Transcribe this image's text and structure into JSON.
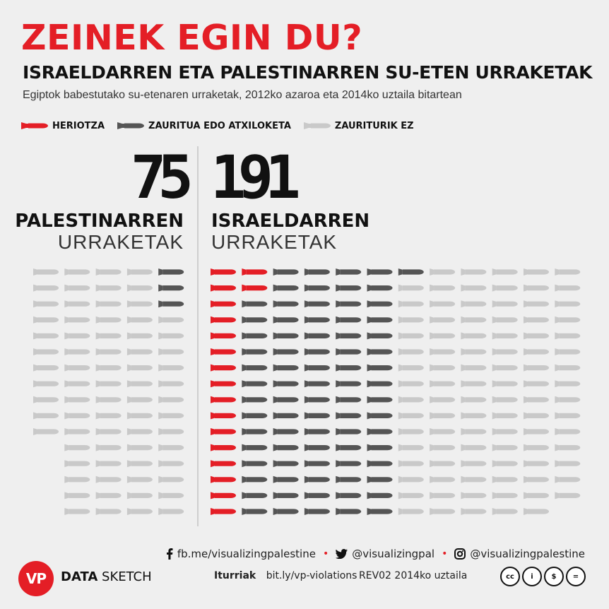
{
  "header": {
    "title": "ZEINEK EGIN DU?",
    "subtitle": "ISRAELDARREN ETA PALESTINARREN SU-ETEN URRAKETAK",
    "description": "Egiptok babestutako su-etenaren urraketak, 2012ko azaroa eta 2014ko uztaila bitartean"
  },
  "legend": [
    {
      "label": "HERIOTZA",
      "color": "#e41e26",
      "icon": "missile-icon"
    },
    {
      "label": "ZAURITUA EDO ATXILOKETA",
      "color": "#555555",
      "icon": "missile-icon"
    },
    {
      "label": "ZAURITURIK EZ",
      "color": "#c9c9c9",
      "icon": "missile-icon"
    }
  ],
  "colors": {
    "death": "#e41e26",
    "injury": "#555555",
    "none": "#c9c9c9",
    "accent": "#e41e26"
  },
  "palestinian": {
    "count": "75",
    "name": "PALESTINARREN",
    "sub": "URRAKETAK",
    "columns": [
      {
        "total": 11,
        "death": 0,
        "injury": 0
      },
      {
        "total": 16,
        "death": 0,
        "injury": 0
      },
      {
        "total": 16,
        "death": 0,
        "injury": 0
      },
      {
        "total": 16,
        "death": 0,
        "injury": 0
      },
      {
        "total": 16,
        "death": 0,
        "injury": 3
      }
    ]
  },
  "israeli": {
    "count": "191",
    "name": "ISRAELDARREN",
    "sub": "URRAKETAK",
    "columns": [
      {
        "total": 16,
        "death": 16,
        "injury": 0
      },
      {
        "total": 16,
        "death": 2,
        "injury": 14
      },
      {
        "total": 16,
        "death": 0,
        "injury": 16
      },
      {
        "total": 16,
        "death": 0,
        "injury": 16
      },
      {
        "total": 16,
        "death": 0,
        "injury": 16
      },
      {
        "total": 16,
        "death": 0,
        "injury": 16
      },
      {
        "total": 16,
        "death": 0,
        "injury": 1
      },
      {
        "total": 16,
        "death": 0,
        "injury": 0
      },
      {
        "total": 16,
        "death": 0,
        "injury": 0
      },
      {
        "total": 16,
        "death": 0,
        "injury": 0
      },
      {
        "total": 16,
        "death": 0,
        "injury": 0
      },
      {
        "total": 15,
        "death": 0,
        "injury": 0
      }
    ]
  },
  "footer": {
    "facebook": "fb.me/visualizingpalestine",
    "twitter": "@visualizingpal",
    "instagram": "@visualizingpalestine",
    "logo": "VP",
    "brand_bold": "DATA",
    "brand_rest": " SKETCH",
    "sources_label": "Iturriak",
    "sources_link": "bit.ly/vp-violations",
    "revision": "REV02",
    "date": "2014ko uztaila",
    "license_icons": [
      "cc-icon",
      "by-icon",
      "nc-icon",
      "nd-icon"
    ],
    "license_glyphs": [
      "cc",
      "i",
      "$",
      "="
    ]
  }
}
